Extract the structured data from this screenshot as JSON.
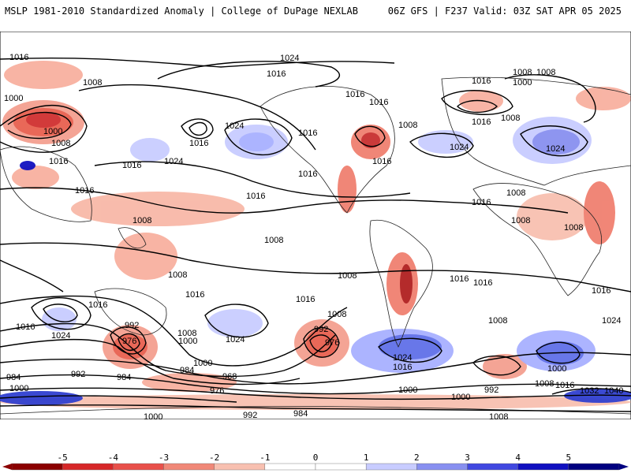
{
  "header": {
    "left_title": "MSLP 1981-2010 Standardized Anomaly | College of DuPage NEXLAB",
    "right_title": "06Z GFS | F237 Valid: 03Z SAT APR 05 2025"
  },
  "colorbar": {
    "labels": [
      "-5",
      "-4",
      "-3",
      "-2",
      "-1",
      "0",
      "1",
      "2",
      "3",
      "4",
      "5"
    ],
    "colors": [
      "#8b0000",
      "#d62728",
      "#e8504a",
      "#f08878",
      "#f8c0b0",
      "#ffffff",
      "#ffffff",
      "#c8ccff",
      "#8890f0",
      "#4048e0",
      "#1010c0",
      "#000080"
    ]
  },
  "contour_labels": [
    "1016",
    "1008",
    "1000",
    "1000",
    "1008",
    "1016",
    "1016",
    "1024",
    "1016",
    "1016",
    "1024",
    "1024",
    "1016",
    "1016",
    "1016",
    "1008",
    "1016",
    "1016",
    "1008",
    "1000",
    "1008",
    "1008",
    "1016",
    "1024",
    "1016",
    "1016",
    "1008",
    "1008",
    "1008",
    "1016",
    "1008",
    "1008",
    "1016",
    "1008",
    "1016",
    "1016",
    "1016",
    "1016",
    "1016",
    "1016",
    "1008",
    "1024",
    "992",
    "976",
    "1000",
    "1024",
    "1008",
    "992",
    "976",
    "1024",
    "1016",
    "1008",
    "1024",
    "984",
    "992",
    "1000",
    "984",
    "968",
    "976",
    "1000",
    "984",
    "992",
    "984",
    "1000",
    "992",
    "1008",
    "1000",
    "1016",
    "1032",
    "1040",
    "1000",
    "1008",
    "1000",
    "1024",
    "1016",
    "1008"
  ]
}
